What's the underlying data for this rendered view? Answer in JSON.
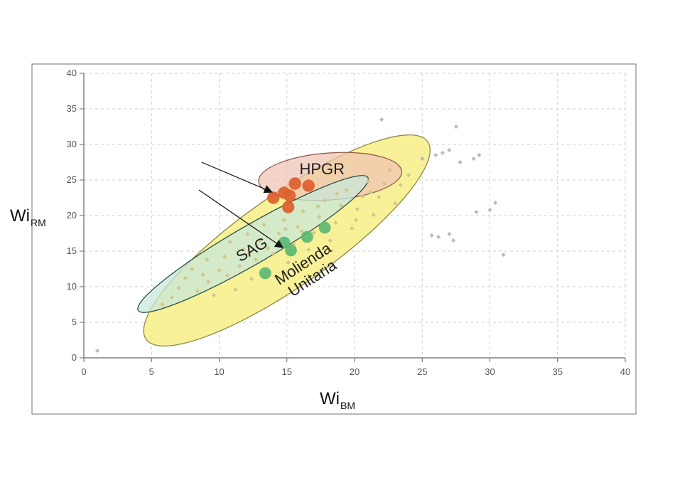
{
  "chart_data": {
    "type": "scatter",
    "title": "",
    "xlabel": {
      "main": "Wi",
      "sub": "BM"
    },
    "ylabel": {
      "main": "Wi",
      "sub": "RM"
    },
    "xlim": [
      0,
      40
    ],
    "ylim": [
      0,
      40
    ],
    "xticks": [
      0,
      5,
      10,
      15,
      20,
      25,
      30,
      35,
      40
    ],
    "yticks": [
      0,
      5,
      10,
      15,
      20,
      25,
      30,
      35,
      40
    ],
    "grid": true,
    "colors": {
      "background_points": "#b5b5b5",
      "dense_points": "#cfc58a",
      "hpgr_points": "#dc6230",
      "sag_points": "#57b870",
      "yellow_region": "#f7ef8a",
      "yellow_region_border": "#8f8a42",
      "hpgr_region": "#f0c3b3",
      "hpgr_region_border": "#945f4f",
      "sag_region": "#c8e8db",
      "sag_region_border": "#2b5143",
      "grid": "#cfcfcf",
      "frame": "#888888"
    },
    "regions": [
      {
        "label": "Molienda",
        "label_line2": "Unitaria",
        "center": [
          15,
          16.5
        ],
        "rx": 12.7,
        "ry": 6.4,
        "angle_deg": 35
      },
      {
        "label": "HPGR",
        "center": [
          18.2,
          25.5
        ],
        "rx": 5.3,
        "ry": 3.3,
        "angle_deg": 4
      },
      {
        "label": "SAG",
        "center": [
          12.5,
          16
        ],
        "rx": 9.8,
        "ry": 2.7,
        "angle_deg": 30
      }
    ],
    "background_points": [
      [
        1,
        1
      ],
      [
        22,
        33.5
      ],
      [
        25,
        28
      ],
      [
        26,
        28.5
      ],
      [
        26.5,
        28.8
      ],
      [
        27,
        29.2
      ],
      [
        27.5,
        32.5
      ],
      [
        27.8,
        27.5
      ],
      [
        28.8,
        28
      ],
      [
        29.2,
        28.5
      ],
      [
        25.7,
        17.2
      ],
      [
        26.2,
        17
      ],
      [
        27,
        17.4
      ],
      [
        27.3,
        16.5
      ],
      [
        29,
        20.5
      ],
      [
        30,
        20.8
      ],
      [
        30.4,
        21.8
      ],
      [
        31,
        14.5
      ],
      [
        6.5,
        8.5
      ],
      [
        7,
        9.8
      ],
      [
        7.5,
        11.2
      ],
      [
        8,
        12.5
      ],
      [
        8.4,
        9.4
      ],
      [
        8.8,
        11.7
      ],
      [
        9.1,
        13.8
      ],
      [
        9.6,
        8.8
      ],
      [
        10,
        12.3
      ],
      [
        10.4,
        14.2
      ],
      [
        10.8,
        16.3
      ],
      [
        11.2,
        9.6
      ],
      [
        11.5,
        12.9
      ],
      [
        11.8,
        15.2
      ],
      [
        12.1,
        17.4
      ],
      [
        12.4,
        11.1
      ],
      [
        12.7,
        13.8
      ],
      [
        13,
        16.5
      ],
      [
        13.3,
        18.7
      ],
      [
        13.7,
        12.2
      ],
      [
        14,
        14.6
      ],
      [
        14.4,
        17.5
      ],
      [
        14.8,
        19.4
      ],
      [
        15.1,
        13.4
      ],
      [
        15.5,
        16
      ],
      [
        15.8,
        18.4
      ],
      [
        16.2,
        20.6
      ],
      [
        16.6,
        15.2
      ],
      [
        17,
        17.6
      ],
      [
        17.4,
        19.8
      ],
      [
        17.8,
        22.1
      ],
      [
        18.2,
        16.5
      ],
      [
        18.6,
        19
      ],
      [
        19,
        21.4
      ],
      [
        19.4,
        23.6
      ],
      [
        19.8,
        18.2
      ],
      [
        20.2,
        20.9
      ],
      [
        20.6,
        22.7
      ],
      [
        21,
        24.8
      ],
      [
        21.4,
        20.1
      ],
      [
        21.8,
        22.6
      ],
      [
        22.2,
        24.5
      ],
      [
        22.6,
        26.4
      ],
      [
        23,
        21.7
      ],
      [
        23.4,
        24.3
      ],
      [
        9.2,
        10.7
      ],
      [
        10.6,
        11.6
      ],
      [
        12.2,
        14.7
      ],
      [
        13.6,
        15.4
      ],
      [
        14.9,
        18.1
      ],
      [
        16.1,
        17.8
      ],
      [
        17.3,
        21.3
      ],
      [
        18.7,
        23.1
      ],
      [
        20.1,
        19.4
      ],
      [
        21.2,
        23.3
      ],
      [
        5.8,
        7.5
      ],
      [
        24,
        25.7
      ]
    ],
    "sample_points": [
      {
        "group": "HPGR",
        "x": 14,
        "y": 22.5
      },
      {
        "group": "HPGR",
        "x": 14.8,
        "y": 23.2
      },
      {
        "group": "HPGR",
        "x": 15.2,
        "y": 22.8
      },
      {
        "group": "HPGR",
        "x": 15.6,
        "y": 24.5
      },
      {
        "group": "HPGR",
        "x": 16.6,
        "y": 24.2
      },
      {
        "group": "HPGR",
        "x": 15.1,
        "y": 21.2
      },
      {
        "group": "SAG",
        "x": 14.8,
        "y": 16.2
      },
      {
        "group": "SAG",
        "x": 15.3,
        "y": 15.1
      },
      {
        "group": "SAG",
        "x": 16.5,
        "y": 17
      },
      {
        "group": "SAG",
        "x": 17.8,
        "y": 18.3
      },
      {
        "group": "SAG",
        "x": 13.4,
        "y": 11.9
      }
    ],
    "arrows": [
      {
        "from": [
          8.7,
          27.5
        ],
        "to": [
          13.9,
          23.3
        ]
      },
      {
        "from": [
          8.5,
          23.6
        ],
        "to": [
          14.7,
          15.5
        ]
      }
    ]
  }
}
